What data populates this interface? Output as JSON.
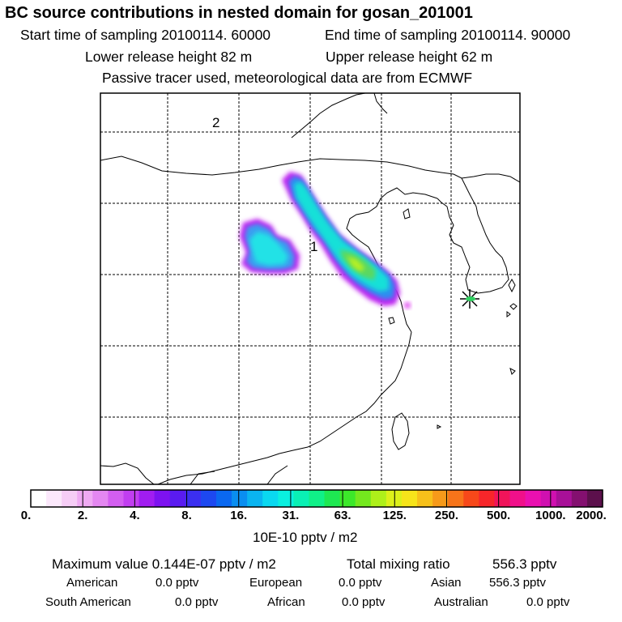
{
  "header": {
    "title": "BC  source contributions in nested domain for gosan_201001",
    "start_time": "Start time of sampling 20100114. 60000",
    "end_time": "End time of sampling 20100114. 90000",
    "lower_release": "Lower release height   82 m",
    "upper_release": "Upper release height   62 m",
    "tracer_note": "Passive tracer used, meteorological data are from ECMWF"
  },
  "map": {
    "label_2": "2",
    "label_1": "1",
    "grid": "dashed",
    "receptor_marker": "star-icon"
  },
  "colorbar": {
    "colors": [
      "#ffffff",
      "#fbe8fb",
      "#f6cdf6",
      "#efaaf3",
      "#e487f1",
      "#d35ef0",
      "#c13ef0",
      "#a11df1",
      "#7d12f0",
      "#5a1bf0",
      "#3b2ff0",
      "#1d48f0",
      "#0a68f0",
      "#0a8ef0",
      "#0ab4f0",
      "#0ad8f0",
      "#0af0e0",
      "#0af0b4",
      "#10f088",
      "#1ee852",
      "#3ce82a",
      "#74e81e",
      "#aef01a",
      "#dcf01a",
      "#f6e41a",
      "#f6c01a",
      "#f69a1a",
      "#f6741a",
      "#f6481a",
      "#f6262a",
      "#f0145a",
      "#f0108a",
      "#ea10b0",
      "#d010b0",
      "#a81098",
      "#841070",
      "#5c104c"
    ],
    "ticks": [
      "0.",
      "2.",
      "4.",
      "8.",
      "16.",
      "31.",
      "63.",
      "125.",
      "250.",
      "500.",
      "1000.",
      "2000."
    ],
    "unit_label": "10E-10 pptv / m2"
  },
  "summary": {
    "max_value": "Maximum value  0.144E-07 pptv / m2",
    "total_mixing": "Total mixing ratio",
    "total_value": "556.3 pptv",
    "american_label": "American",
    "american_value": "0.0 pptv",
    "european_label": "European",
    "european_value": "0.0 pptv",
    "asian_label": "Asian",
    "asian_value": "556.3 pptv",
    "south_american_label": "South American",
    "south_american_value": "0.0 pptv",
    "african_label": "African",
    "african_value": "0.0 pptv",
    "australian_label": "Australian",
    "australian_value": "0.0 pptv"
  }
}
